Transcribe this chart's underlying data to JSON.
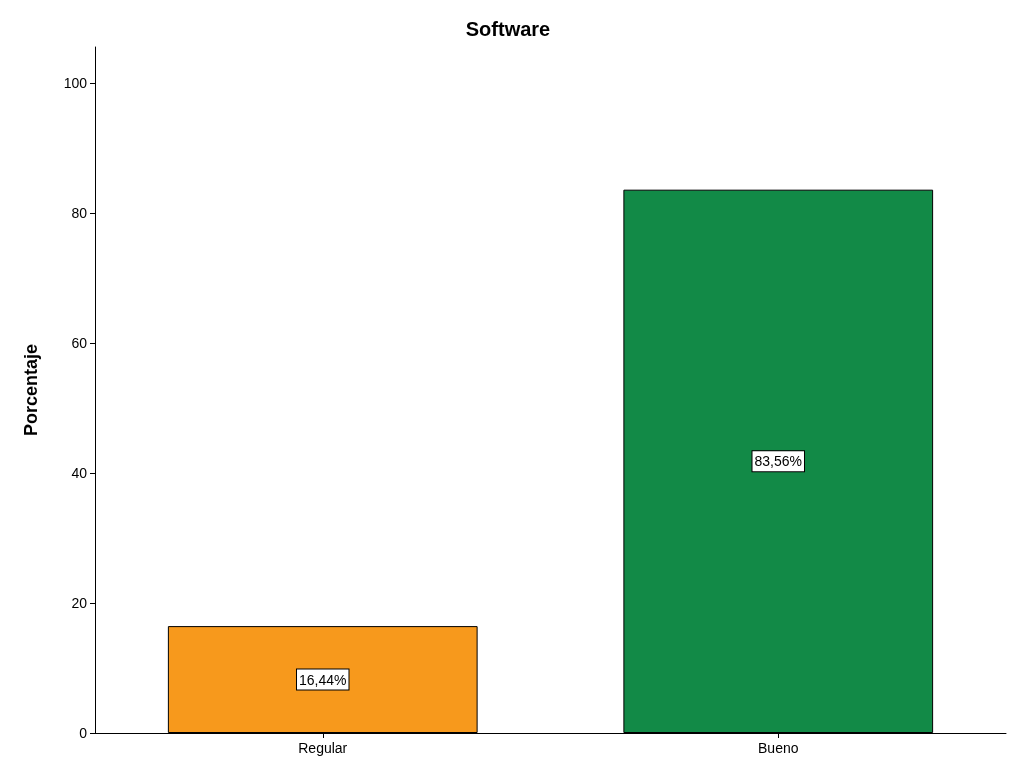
{
  "chart_data": {
    "type": "bar",
    "title": "Software",
    "ylabel": "Porcentaje",
    "categories": [
      "Regular",
      "Bueno"
    ],
    "values": [
      16.44,
      83.56
    ],
    "colors": [
      "#f7991c",
      "#128a47"
    ],
    "value_labels": [
      "16,44%",
      "83,56%"
    ],
    "ylim": [
      0,
      105.5
    ],
    "yticks": [
      0,
      20,
      40,
      60,
      80,
      100
    ],
    "grid": false
  }
}
